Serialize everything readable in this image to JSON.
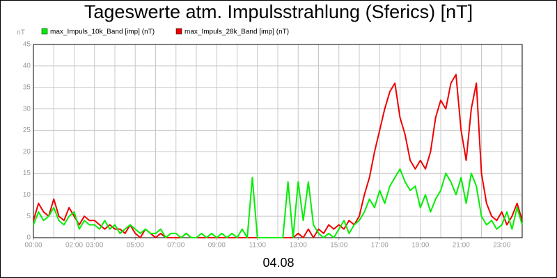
{
  "chart_data": {
    "type": "line",
    "title": "Tageswerte atm. Impulsstrahlung (Sferics) [nT]",
    "y_unit": "nT",
    "x_label": "04.08",
    "x": [
      0,
      0.25,
      0.5,
      0.75,
      1,
      1.25,
      1.5,
      1.75,
      2,
      2.25,
      2.5,
      2.75,
      3,
      3.25,
      3.5,
      3.75,
      4,
      4.25,
      4.5,
      4.75,
      5,
      5.25,
      5.5,
      5.75,
      6,
      6.25,
      6.5,
      6.75,
      7,
      7.25,
      7.5,
      7.75,
      8,
      8.25,
      8.5,
      8.75,
      9,
      9.25,
      9.5,
      9.75,
      10,
      10.25,
      10.5,
      10.75,
      11,
      11.25,
      11.5,
      11.75,
      12,
      12.25,
      12.5,
      12.75,
      13,
      13.25,
      13.5,
      13.75,
      14,
      14.25,
      14.5,
      14.75,
      15,
      15.25,
      15.5,
      15.75,
      16,
      16.25,
      16.5,
      16.75,
      17,
      17.25,
      17.5,
      17.75,
      18,
      18.25,
      18.5,
      18.75,
      19,
      19.25,
      19.5,
      19.75,
      20,
      20.25,
      20.5,
      20.75,
      21,
      21.25,
      21.5,
      21.75,
      22,
      22.25,
      22.5,
      22.75,
      23,
      23.25,
      23.5,
      23.75,
      24
    ],
    "series": [
      {
        "name": "max_Impuls_10k_Band [imp] (nT)",
        "color": "#00ee00",
        "values": [
          3,
          6,
          4,
          5,
          7,
          4,
          3,
          5,
          6,
          2,
          4,
          3,
          3,
          2,
          4,
          2,
          3,
          1,
          2,
          3,
          2,
          1,
          2,
          1,
          1,
          2,
          0,
          1,
          1,
          0,
          1,
          0,
          0,
          1,
          0,
          1,
          0,
          1,
          0,
          1,
          0,
          2,
          0,
          14,
          0,
          0,
          0,
          0,
          0,
          0,
          13,
          0,
          13,
          4,
          13,
          3,
          1,
          0,
          1,
          0,
          2,
          4,
          1,
          3,
          4,
          6,
          9,
          7,
          11,
          8,
          12,
          14,
          16,
          13,
          11,
          12,
          7,
          10,
          6,
          9,
          11,
          15,
          13,
          10,
          14,
          8,
          15,
          12,
          5,
          3,
          4,
          2,
          3,
          6,
          2,
          7,
          3
        ]
      },
      {
        "name": "max_Impuls_28k_Band [imp] (nT)",
        "color": "#ee0000",
        "values": [
          4,
          8,
          6,
          5,
          9,
          5,
          4,
          7,
          5,
          3,
          5,
          4,
          4,
          3,
          2,
          3,
          2,
          2,
          1,
          3,
          1,
          0,
          2,
          1,
          0,
          1,
          0,
          0,
          0,
          0,
          1,
          0,
          0,
          0,
          0,
          0,
          0,
          0,
          0,
          0,
          0,
          0,
          0,
          0,
          0,
          0,
          0,
          0,
          0,
          0,
          0,
          0,
          1,
          0,
          2,
          0,
          2,
          1,
          3,
          2,
          3,
          2,
          4,
          3,
          5,
          10,
          14,
          20,
          25,
          30,
          34,
          36,
          28,
          24,
          18,
          16,
          18,
          16,
          20,
          28,
          32,
          30,
          36,
          38,
          25,
          18,
          30,
          36,
          15,
          8,
          5,
          4,
          6,
          3,
          5,
          8,
          4
        ]
      }
    ],
    "xlim": [
      0,
      24
    ],
    "ylim": [
      0,
      45
    ],
    "yticks": [
      0,
      5,
      10,
      15,
      20,
      25,
      30,
      35,
      40,
      45
    ],
    "xticks": [
      {
        "value": 0,
        "label": "00:00"
      },
      {
        "value": 2,
        "label": "02:00"
      },
      {
        "value": 3,
        "label": "03:00"
      },
      {
        "value": 5,
        "label": "05:00"
      },
      {
        "value": 7,
        "label": "07:00"
      },
      {
        "value": 9,
        "label": "09:00"
      },
      {
        "value": 11,
        "label": "11:00"
      },
      {
        "value": 13,
        "label": "13:00"
      },
      {
        "value": 15,
        "label": "15:00"
      },
      {
        "value": 17,
        "label": "17:00"
      },
      {
        "value": 19,
        "label": "19:00"
      },
      {
        "value": 21,
        "label": "21:00"
      },
      {
        "value": 23,
        "label": "23:00"
      }
    ],
    "xgrid": [
      1,
      2,
      3,
      4,
      5,
      6,
      7,
      8,
      9,
      10,
      11,
      12,
      13,
      14,
      15,
      16,
      17,
      18,
      19,
      20,
      21,
      22,
      23
    ],
    "grid": true
  }
}
